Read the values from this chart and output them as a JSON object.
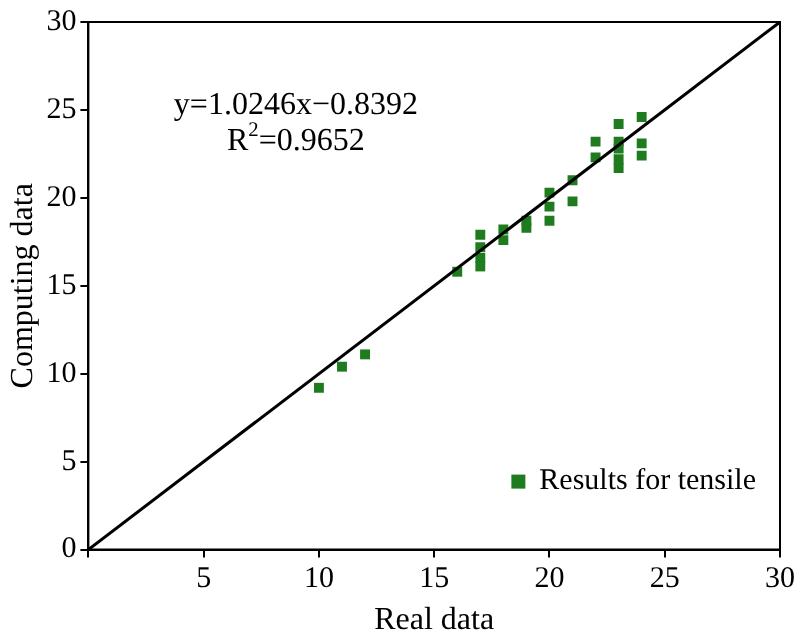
{
  "chart_data": {
    "type": "scatter",
    "xlabel": "Real data",
    "ylabel": "Computing data",
    "xlim": [
      0,
      30
    ],
    "ylim": [
      0,
      30
    ],
    "xticks": [
      {
        "value": 0,
        "label": null
      },
      5,
      10,
      15,
      20,
      25,
      30
    ],
    "yticks": [
      0,
      5,
      10,
      15,
      20,
      25,
      30
    ],
    "annotations": [
      "y=1.0246x−0.8392",
      "R$^{2}$=0.9652"
    ],
    "series": [
      {
        "name": "Results for tensile",
        "color": "#1e7b1e",
        "marker": "square",
        "x": [
          10,
          11,
          12,
          16,
          17,
          17,
          17,
          17,
          18,
          18,
          19,
          19,
          20,
          20,
          20,
          21,
          21,
          22,
          22,
          23,
          23,
          23,
          23,
          23,
          24,
          24,
          24
        ],
        "values": [
          9.2,
          10.4,
          11.1,
          15.8,
          17.9,
          17.2,
          16.6,
          16.1,
          18.2,
          17.6,
          18.7,
          18.3,
          20.3,
          19.5,
          18.7,
          21.0,
          19.8,
          23.2,
          22.3,
          24.2,
          23.2,
          22.8,
          22.2,
          21.7,
          24.6,
          23.1,
          22.4
        ]
      },
      {
        "type": "line",
        "color": "#000000",
        "marker": "none",
        "line_style": "solid",
        "x": [
          0,
          30
        ],
        "values": [
          0,
          30
        ]
      }
    ],
    "grid": false,
    "legend": "bottom right"
  }
}
